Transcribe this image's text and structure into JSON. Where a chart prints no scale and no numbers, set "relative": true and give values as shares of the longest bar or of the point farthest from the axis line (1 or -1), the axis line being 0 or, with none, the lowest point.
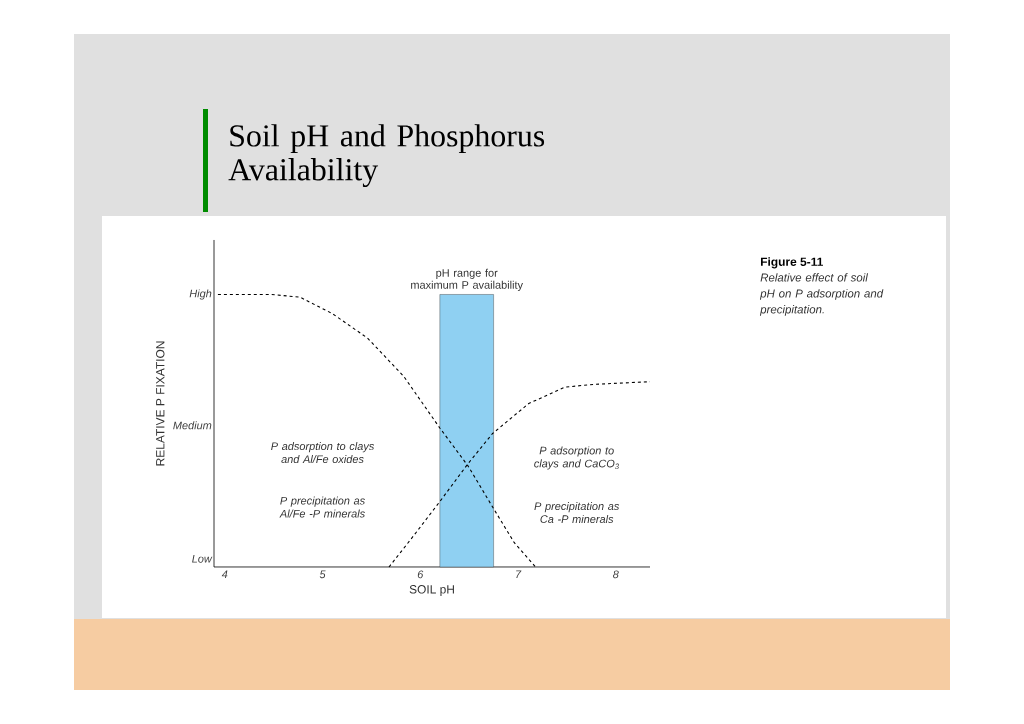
{
  "chart_data": {
    "type": "line",
    "title": "Soil pH and Phosphorus Availability",
    "xlabel": "SOIL pH",
    "ylabel": "RELATIVE P FIXATION",
    "relative": true,
    "xlim": [
      3.89,
      8.35
    ],
    "xticks": [
      4,
      5,
      6,
      7,
      8
    ],
    "series": [
      {
        "color": "#000000",
        "line_style": "dashed",
        "x": [
          3.93,
          4.48,
          4.77,
          5.1,
          5.46,
          5.83,
          6.2,
          6.49,
          6.74,
          6.96,
          7.18
        ],
        "values": [
          1,
          1,
          0.99,
          0.93,
          0.84,
          0.7,
          0.51,
          0.37,
          0.22,
          0.09,
          0
        ]
      },
      {
        "color": "#000000",
        "line_style": "dashed",
        "x": [
          5.68,
          5.9,
          6.2,
          6.49,
          6.74,
          7.11,
          7.48,
          7.77,
          8.35
        ],
        "values": [
          0,
          0.1,
          0.24,
          0.38,
          0.49,
          0.6,
          0.66,
          0.67,
          0.68
        ]
      }
    ],
    "bands": [
      {
        "axis": "x",
        "from": 6.2,
        "to": 6.75,
        "label": "pH range for maximum P availability",
        "color": "#8fd0f2"
      }
    ],
    "annotations": [
      "P adsorption to clays and Al/Fe oxides",
      "P precipitation as Al/Fe -P minerals",
      "P adsorption to clays and CaCO$_{3}$",
      "P precipitation as Ca -P minerals",
      "Figure 5-11",
      "Relative effect of soil pH on P adsorption and precipitation.",
      "High",
      "Medium",
      "Low"
    ]
  }
}
